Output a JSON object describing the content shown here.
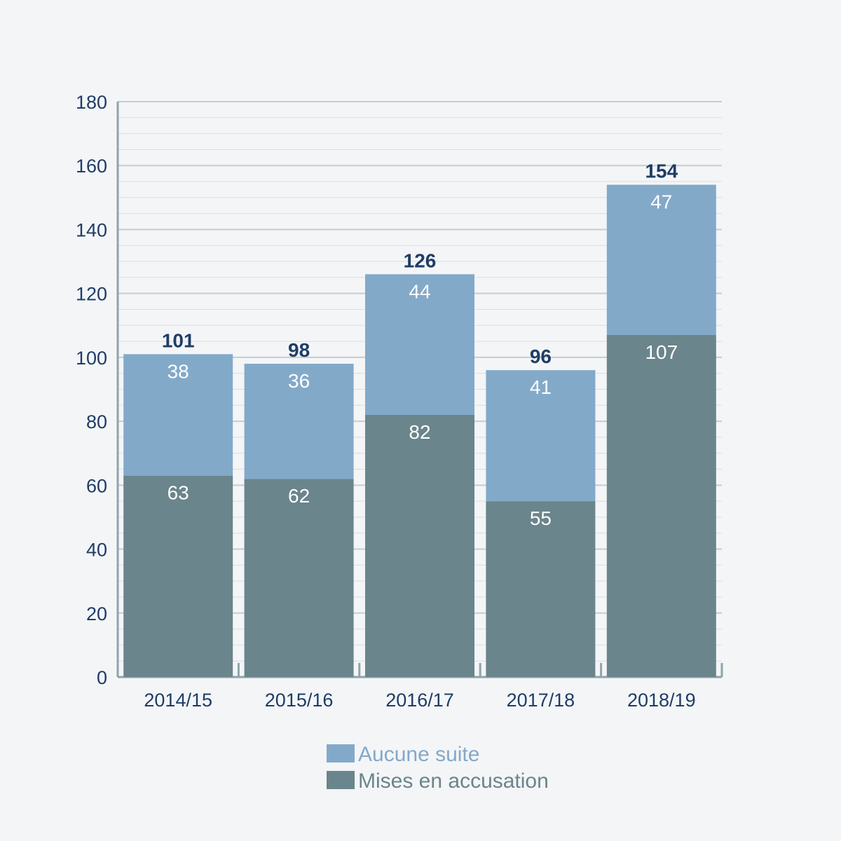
{
  "chart_data": {
    "type": "bar",
    "stacked": true,
    "categories": [
      "2014/15",
      "2015/16",
      "2016/17",
      "2017/18",
      "2018/19"
    ],
    "series": [
      {
        "name": "Mises en accusation",
        "values": [
          63,
          62,
          82,
          55,
          107
        ],
        "color": "#6a858b"
      },
      {
        "name": "Aucune suite",
        "values": [
          38,
          36,
          44,
          41,
          47
        ],
        "color": "#83a9c9"
      }
    ],
    "totals": [
      101,
      98,
      126,
      96,
      154
    ],
    "legend_order": [
      "Aucune suite",
      "Mises en accusation"
    ],
    "title": "",
    "xlabel": "",
    "ylabel": "",
    "ylim": [
      0,
      180
    ],
    "yticks": [
      0,
      20,
      40,
      60,
      80,
      100,
      120,
      140,
      160,
      180
    ],
    "grid": true,
    "legend_position": "bottom-center"
  }
}
